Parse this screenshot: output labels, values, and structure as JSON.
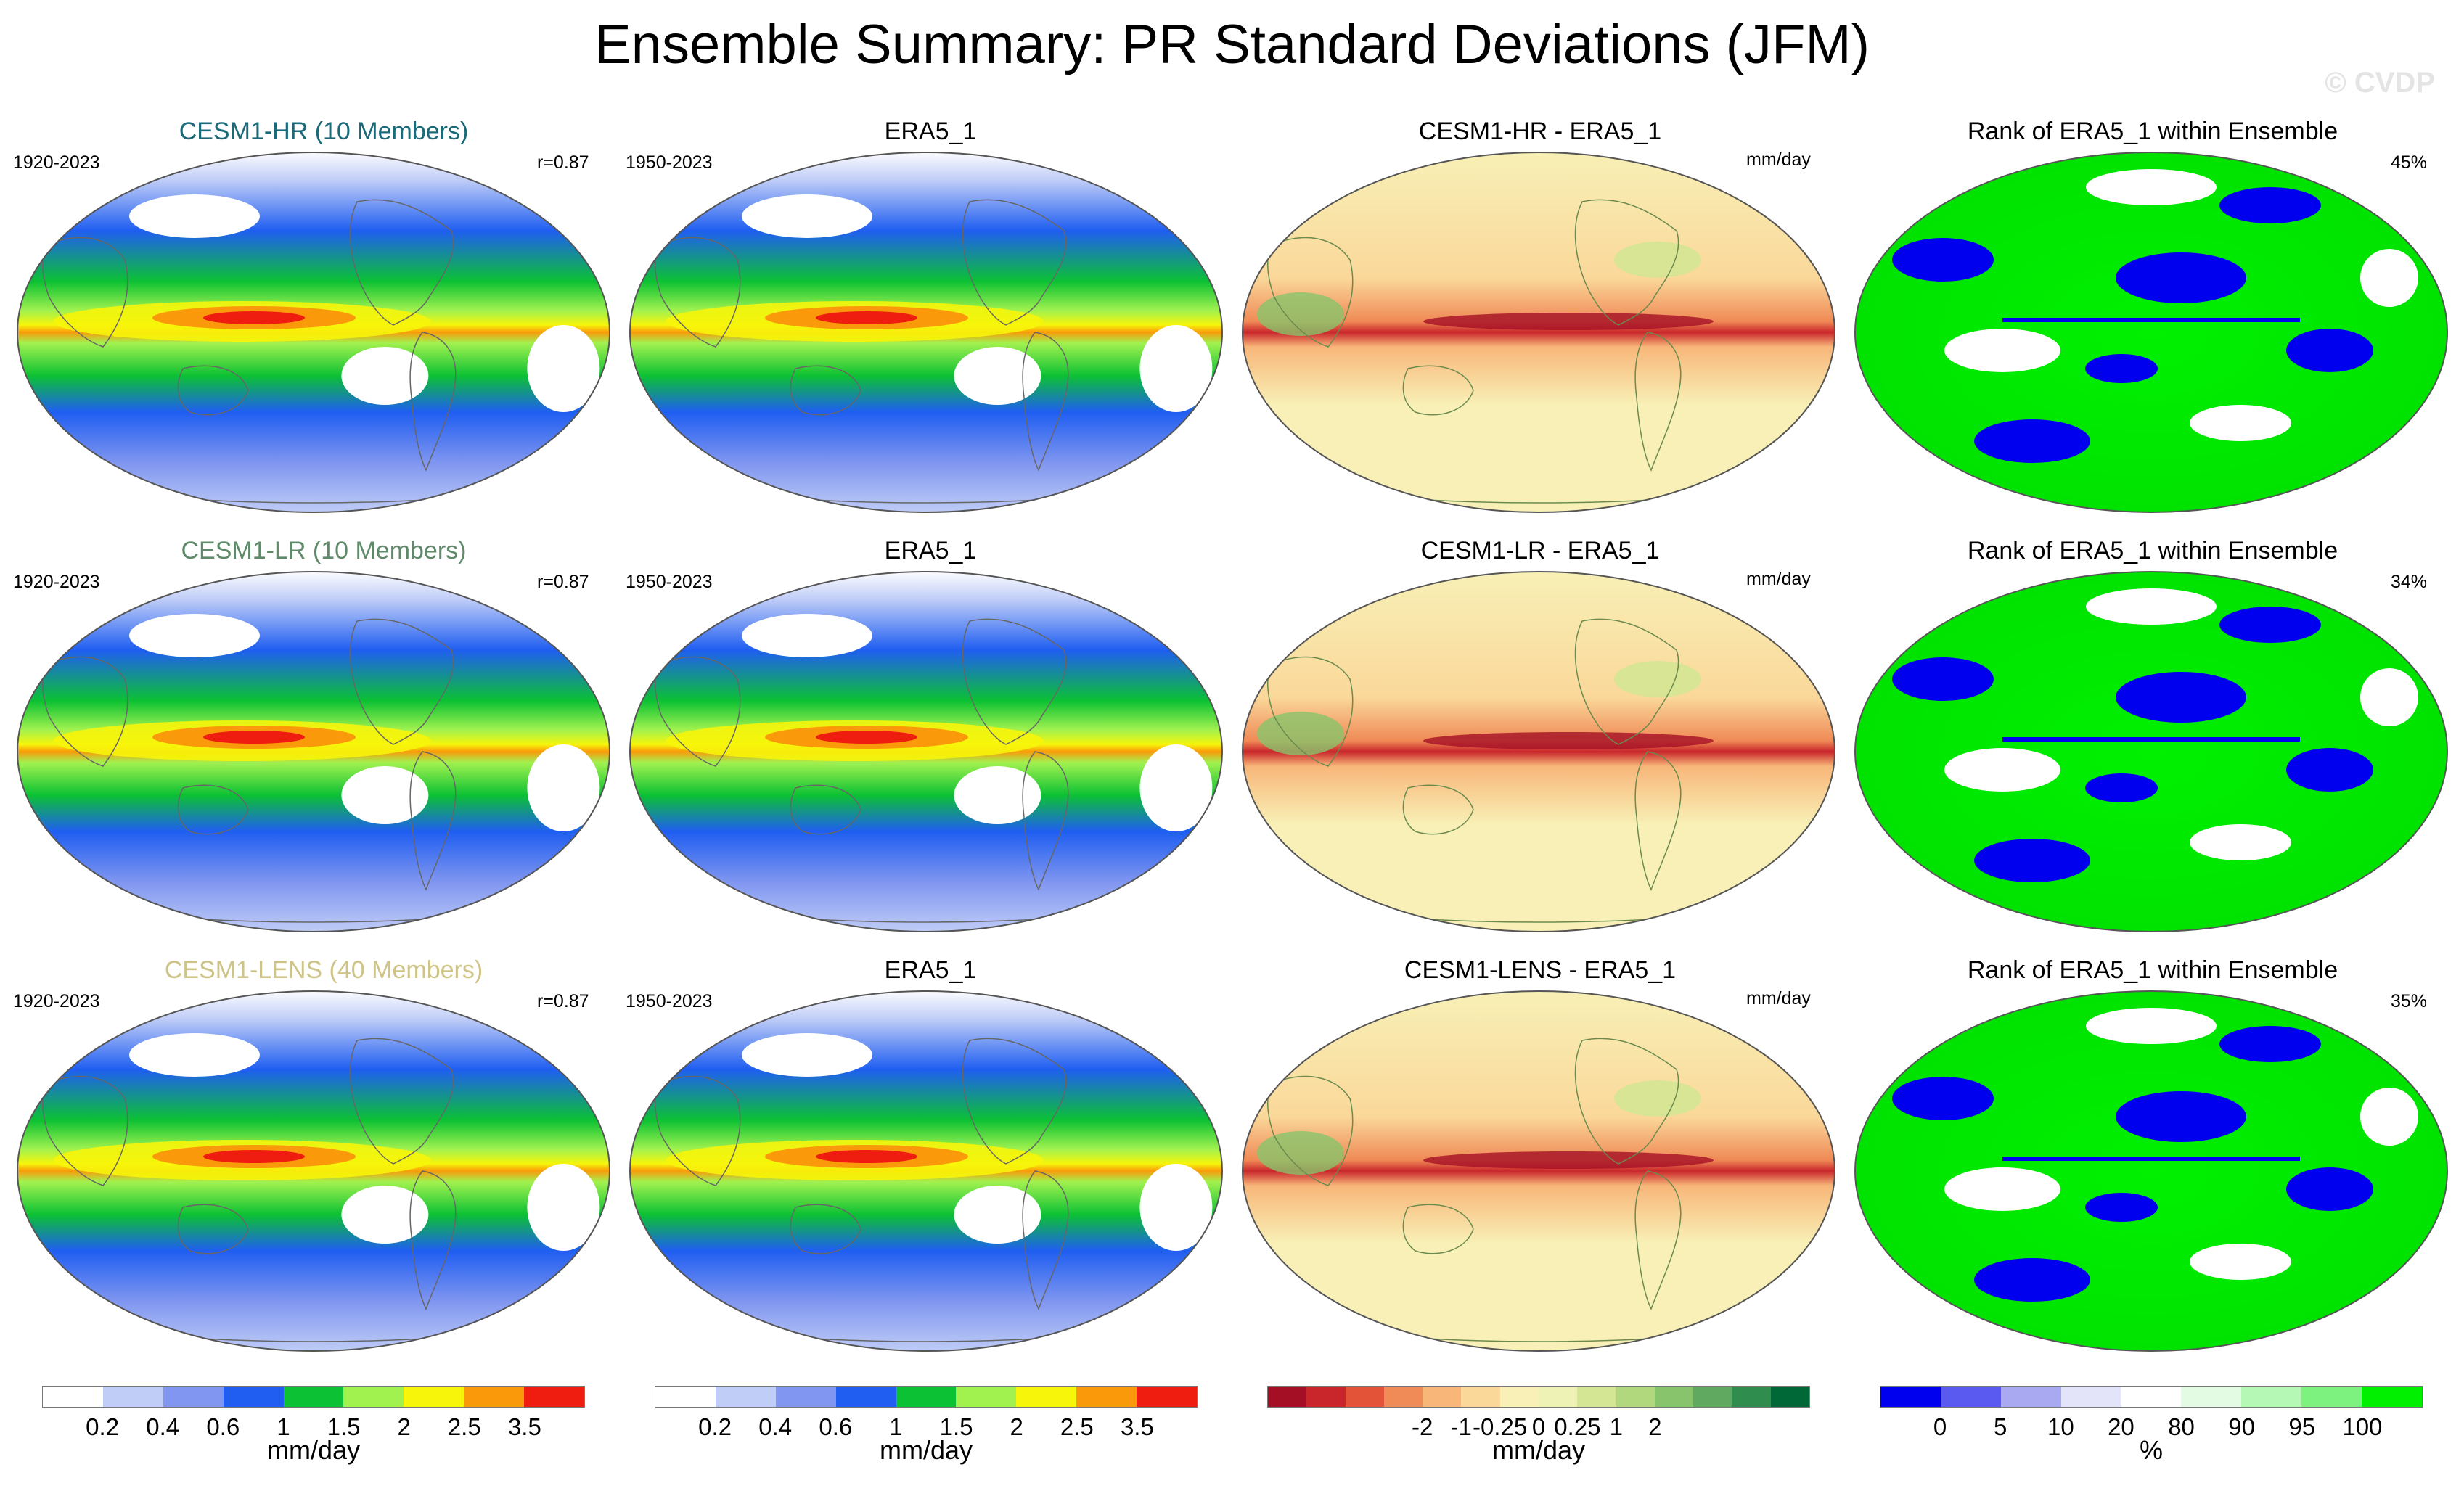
{
  "title": "Ensemble Summary: PR Standard Deviations (JFM)",
  "watermark": "© CVDP",
  "rows": [
    {
      "model": "CESM1-HR (10 Members)",
      "model_color": "#1a6a7a",
      "model_years": "1920-2023",
      "r": "r=0.87",
      "obs": "ERA5_1",
      "obs_years": "1950-2023",
      "diff": "CESM1-HR - ERA5_1",
      "diff_units": "mm/day",
      "rank": "Rank of ERA5_1 within Ensemble",
      "rank_pct": "45%"
    },
    {
      "model": "CESM1-LR (10 Members)",
      "model_color": "#5f8a6a",
      "model_years": "1920-2023",
      "r": "r=0.87",
      "obs": "ERA5_1",
      "obs_years": "1950-2023",
      "diff": "CESM1-LR - ERA5_1",
      "diff_units": "mm/day",
      "rank": "Rank of ERA5_1 within Ensemble",
      "rank_pct": "34%"
    },
    {
      "model": "CESM1-LENS (40 Members)",
      "model_color": "#cfc487",
      "model_years": "1920-2023",
      "r": "r=0.87",
      "obs": "ERA5_1",
      "obs_years": "1950-2023",
      "diff": "CESM1-LENS - ERA5_1",
      "diff_units": "mm/day",
      "rank": "Rank of ERA5_1 within Ensemble",
      "rank_pct": "35%"
    }
  ],
  "colorbars": {
    "sd": {
      "colors": [
        "#ffffff",
        "#c0cdf7",
        "#8096f0",
        "#1f5ef1",
        "#0cc133",
        "#a1f24f",
        "#f6f50a",
        "#fa9a0a",
        "#ef1c10"
      ],
      "ticks": [
        "0.2",
        "0.4",
        "0.6",
        "1",
        "1.5",
        "2",
        "2.5",
        "3.5"
      ],
      "units": "mm/day"
    },
    "diff": {
      "colors": [
        "#a50f26",
        "#c9262b",
        "#e25337",
        "#f08a56",
        "#f8b679",
        "#fad89a",
        "#f8f0b6",
        "#eef2b4",
        "#d4e694",
        "#b1d87c",
        "#88c46b",
        "#5faa60",
        "#2f8e4d",
        "#006837"
      ],
      "ticks": [
        "-2",
        "-1",
        "-0.25",
        "0",
        "0.25",
        "1",
        "2"
      ],
      "units": "mm/day"
    },
    "rank": {
      "colors": [
        "#0000ee",
        "#5a5af0",
        "#a9a9f2",
        "#e3e3fa",
        "#ffffff",
        "#e3fbe3",
        "#b5f7b5",
        "#7ef27e",
        "#00f000"
      ],
      "ticks": [
        "0",
        "5",
        "10",
        "20",
        "80",
        "90",
        "95",
        "100"
      ],
      "units": "%"
    }
  }
}
